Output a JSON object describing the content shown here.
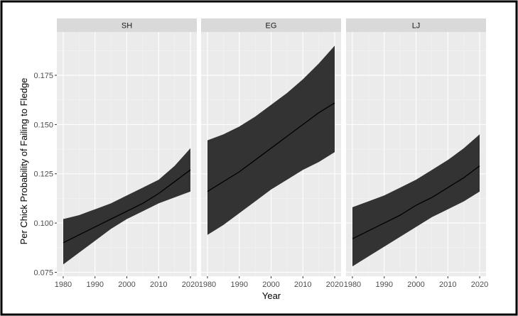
{
  "chart_data": {
    "type": "line",
    "title": "",
    "xlabel": "Year",
    "ylabel": "Per Chick Probability of Failing to Fledge",
    "xlim": [
      1978,
      2022
    ],
    "ylim": [
      0.073,
      0.197
    ],
    "x_ticks": [
      1980,
      1990,
      2000,
      2010,
      2020
    ],
    "x_tick_labels": [
      "1980",
      "1990",
      "2000",
      "2010",
      "2020"
    ],
    "y_ticks": [
      0.075,
      0.1,
      0.125,
      0.15,
      0.175
    ],
    "y_tick_labels": [
      "0.075",
      "0.100",
      "0.125",
      "0.150",
      "0.175"
    ],
    "grid": true,
    "band": "confidence interval around fitted line",
    "panels": [
      {
        "label": "SH",
        "x": [
          1980,
          1985,
          1990,
          1995,
          2000,
          2005,
          2010,
          2015,
          2020
        ],
        "fit": [
          0.09,
          0.094,
          0.098,
          0.102,
          0.106,
          0.11,
          0.115,
          0.121,
          0.127
        ],
        "lower": [
          0.079,
          0.085,
          0.091,
          0.097,
          0.102,
          0.106,
          0.11,
          0.113,
          0.116
        ],
        "upper": [
          0.102,
          0.104,
          0.107,
          0.11,
          0.114,
          0.118,
          0.122,
          0.129,
          0.138
        ]
      },
      {
        "label": "EG",
        "x": [
          1980,
          1985,
          1990,
          1995,
          2000,
          2005,
          2010,
          2015,
          2020
        ],
        "fit": [
          0.116,
          0.121,
          0.126,
          0.132,
          0.138,
          0.144,
          0.15,
          0.156,
          0.161
        ],
        "lower": [
          0.094,
          0.099,
          0.105,
          0.111,
          0.117,
          0.122,
          0.127,
          0.131,
          0.136
        ],
        "upper": [
          0.142,
          0.145,
          0.149,
          0.154,
          0.16,
          0.166,
          0.173,
          0.181,
          0.19
        ]
      },
      {
        "label": "LJ",
        "x": [
          1980,
          1985,
          1990,
          1995,
          2000,
          2005,
          2010,
          2015,
          2020
        ],
        "fit": [
          0.092,
          0.096,
          0.1,
          0.104,
          0.109,
          0.113,
          0.118,
          0.123,
          0.129
        ],
        "lower": [
          0.078,
          0.083,
          0.088,
          0.093,
          0.098,
          0.103,
          0.107,
          0.111,
          0.116
        ],
        "upper": [
          0.108,
          0.111,
          0.114,
          0.118,
          0.122,
          0.127,
          0.132,
          0.138,
          0.145
        ]
      }
    ]
  },
  "colors": {
    "panel_background": "#ebebeb",
    "grid_major": "#ffffff",
    "grid_minor": "#f4f4f4",
    "strip_background": "#d9d9d9",
    "band_fill": "#333333",
    "line": "#000000",
    "frame_border": "#000000"
  }
}
